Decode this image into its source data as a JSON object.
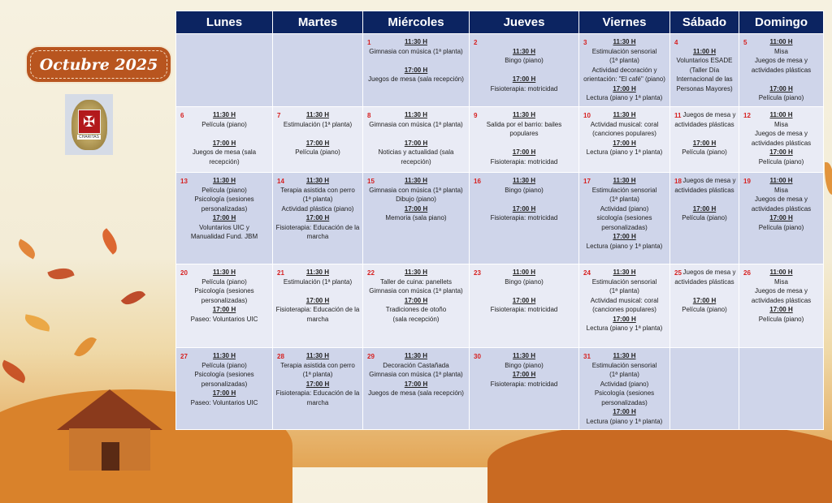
{
  "title": "Octubre 2025",
  "logo": {
    "text": "CHARITAS",
    "icon": "cross-icon"
  },
  "colors": {
    "header": "#0c2461",
    "row_dark": "#cfd5ea",
    "row_light": "#e9ebf5",
    "day_number": "#d62020",
    "badge": "#b8551f"
  },
  "weekdays": [
    "Lunes",
    "Martes",
    "Miércoles",
    "Jueves",
    "Viernes",
    "Sábado",
    "Domingo"
  ],
  "weeks": [
    [
      {
        "day": "",
        "items": []
      },
      {
        "day": "",
        "items": []
      },
      {
        "day": "1",
        "items": [
          {
            "time": "11:30 H"
          },
          {
            "text": "Gimnasia con música (1ª planta)"
          },
          {
            "gap": true
          },
          {
            "time": "17:00 H"
          },
          {
            "text": "Juegos de mesa (sala recepción)"
          }
        ]
      },
      {
        "day": "2",
        "items": [
          {
            "gap": true
          },
          {
            "time": "11:30 H"
          },
          {
            "text": "Bingo (piano)"
          },
          {
            "gap": true
          },
          {
            "time": "17:00 H"
          },
          {
            "text": "Fisioterapia: motricidad"
          }
        ]
      },
      {
        "day": "3",
        "items": [
          {
            "time": "11:30 H"
          },
          {
            "text": "Estimulación sensorial"
          },
          {
            "text": "(1ª planta)"
          },
          {
            "text": "Actividad decoración y"
          },
          {
            "text": "orientación: \"El café\" (piano)"
          },
          {
            "time": "17:00 H"
          },
          {
            "text": "Lectura (piano y 1ª planta)"
          }
        ]
      },
      {
        "day": "4",
        "items": [
          {
            "gap": true
          },
          {
            "time": "11:00 H"
          },
          {
            "text": "Voluntarios ESADE"
          },
          {
            "text": "(Taller Día"
          },
          {
            "text": "Internacional de las"
          },
          {
            "text": "Personas Mayores)"
          }
        ]
      },
      {
        "day": "5",
        "items": [
          {
            "time": "11:00 H"
          },
          {
            "text": "Misa"
          },
          {
            "text": "Juegos de mesa y"
          },
          {
            "text": "actividades plásticas"
          },
          {
            "gap": true
          },
          {
            "time": "17:00 H"
          },
          {
            "text": "Película (piano)"
          }
        ]
      }
    ],
    [
      {
        "day": "6",
        "items": [
          {
            "time": "11:30 H"
          },
          {
            "text": "Película (piano)"
          },
          {
            "gap": true
          },
          {
            "time": "17:00 H"
          },
          {
            "text": "Juegos de mesa (sala recepción)"
          }
        ]
      },
      {
        "day": "7",
        "items": [
          {
            "time": "11:30 H"
          },
          {
            "text": "Estimulación (1ª planta)"
          },
          {
            "gap": true
          },
          {
            "time": "17:00 H"
          },
          {
            "text": "Película (piano)"
          }
        ]
      },
      {
        "day": "8",
        "items": [
          {
            "time": "11:30 H"
          },
          {
            "text": "Gimnasia con música (1ª planta)"
          },
          {
            "gap": true
          },
          {
            "time": "17:00 H"
          },
          {
            "text": "Noticias y actualidad (sala"
          },
          {
            "text": "recepción)"
          }
        ]
      },
      {
        "day": "9",
        "items": [
          {
            "time": "11:30 H"
          },
          {
            "text": "Salida por el barrio: bailes populares"
          },
          {
            "gap": true
          },
          {
            "time": "17:00 H"
          },
          {
            "text": "Fisioterapia: motricidad"
          }
        ]
      },
      {
        "day": "10",
        "items": [
          {
            "time": "11:30 H"
          },
          {
            "text": "Actividad musical: coral"
          },
          {
            "text": "(canciones populares)"
          },
          {
            "time": "17:00 H"
          },
          {
            "text": "Lectura (piano y 1ª planta)"
          }
        ]
      },
      {
        "day": "11",
        "items": [
          {
            "text": "Juegos de mesa y"
          },
          {
            "text": "actividades plásticas"
          },
          {
            "gap": true
          },
          {
            "time": "17:00 H"
          },
          {
            "text": "Película (piano)"
          }
        ]
      },
      {
        "day": "12",
        "items": [
          {
            "time": "11:00 H"
          },
          {
            "text": "Misa"
          },
          {
            "text": "Juegos de mesa y"
          },
          {
            "text": "actividades plásticas"
          },
          {
            "time": "17:00 H"
          },
          {
            "text": "Película (piano)"
          }
        ]
      }
    ],
    [
      {
        "day": "13",
        "items": [
          {
            "time": "11:30  H"
          },
          {
            "text": "Película (piano)"
          },
          {
            "text": "Psicología (sesiones"
          },
          {
            "text": "personalizadas)"
          },
          {
            "time": "17:00  H"
          },
          {
            "text": "Voluntarios UIC    y"
          },
          {
            "text": "Manualidad Fund. JBM"
          }
        ]
      },
      {
        "day": "14",
        "items": [
          {
            "time": "11:30 H"
          },
          {
            "text": "Terapia asistida con perro"
          },
          {
            "text": "(1ª planta)"
          },
          {
            "text": "Actividad plástica (piano)"
          },
          {
            "time": "17:00 H"
          },
          {
            "text": "Fisioterapia: Educación de la"
          },
          {
            "text": "marcha"
          }
        ]
      },
      {
        "day": "15",
        "items": [
          {
            "time": "11:30 H"
          },
          {
            "text": "Gimnasia con música (1ª planta)"
          },
          {
            "text": "Dibujo (piano)"
          },
          {
            "time": "17:00 H"
          },
          {
            "text": "Memoria (sala piano)"
          }
        ]
      },
      {
        "day": "16",
        "items": [
          {
            "time": "11:30 H"
          },
          {
            "text": "Bingo (piano)"
          },
          {
            "gap": true
          },
          {
            "time": "17:00 H"
          },
          {
            "text": "Fisioterapia: motricidad"
          }
        ]
      },
      {
        "day": "17",
        "items": [
          {
            "time": "11:30 H"
          },
          {
            "text": "Estimulación sensorial"
          },
          {
            "text": "(1ª planta)"
          },
          {
            "text": "Actividad (piano)"
          },
          {
            "text": "sicología (sesiones"
          },
          {
            "text": "personalizadas)"
          },
          {
            "time": "17:00 H"
          },
          {
            "text": "Lectura (piano y 1ª planta)"
          }
        ]
      },
      {
        "day": "18",
        "items": [
          {
            "text": "Juegos de mesa y"
          },
          {
            "text": "actividades plásticas"
          },
          {
            "gap": true
          },
          {
            "time": "17:00 H"
          },
          {
            "text": "Película (piano)"
          }
        ]
      },
      {
        "day": "19",
        "items": [
          {
            "time": "11:00 H"
          },
          {
            "text": "Misa"
          },
          {
            "text": "Juegos de mesa y"
          },
          {
            "text": "actividades plásticas"
          },
          {
            "time": "17:00 H"
          },
          {
            "text": "Película (piano)"
          }
        ]
      }
    ],
    [
      {
        "day": "20",
        "items": [
          {
            "time": "11:30 H"
          },
          {
            "text": "Película (piano)"
          },
          {
            "text": "Psicología (sesiones"
          },
          {
            "text": "personalizadas)"
          },
          {
            "time": "17:00 H"
          },
          {
            "text": "Paseo: Voluntarios UIC"
          }
        ]
      },
      {
        "day": "21",
        "items": [
          {
            "time": "11:30 H"
          },
          {
            "text": "Estimulación (1ª planta)"
          },
          {
            "gap": true
          },
          {
            "time": "17:00 H"
          },
          {
            "text": "Fisioterapia: Educación de la"
          },
          {
            "text": "marcha"
          }
        ]
      },
      {
        "day": "22",
        "items": [
          {
            "time": "11:30 H"
          },
          {
            "text": "Taller de cuina: panellets"
          },
          {
            "text": "Gimnasia con música (1ª planta)"
          },
          {
            "time": "17:00 H"
          },
          {
            "text": "Tradiciones de otoño"
          },
          {
            "text": "(sala recepción)"
          }
        ]
      },
      {
        "day": "23",
        "items": [
          {
            "time": "11:00 H"
          },
          {
            "text": "Bingo (piano)"
          },
          {
            "gap": true
          },
          {
            "time": "17:00 H"
          },
          {
            "text": "Fisioterapia: motricidad"
          }
        ]
      },
      {
        "day": "24",
        "items": [
          {
            "time": "11:30 H"
          },
          {
            "text": "Estimulación sensorial"
          },
          {
            "text": "(1ª planta)"
          },
          {
            "text": "Actividad musical: coral"
          },
          {
            "text": "(canciones populares)"
          },
          {
            "time": "17:00 H"
          },
          {
            "text": "Lectura (piano y 1ª planta)"
          }
        ]
      },
      {
        "day": "25",
        "items": [
          {
            "text": "Juegos de mesa y"
          },
          {
            "text": "actividades plásticas"
          },
          {
            "gap": true
          },
          {
            "time": "17:00 H"
          },
          {
            "text": "Película (piano)"
          }
        ]
      },
      {
        "day": "26",
        "items": [
          {
            "time": "11:00 H"
          },
          {
            "text": "Misa"
          },
          {
            "text": "Juegos de mesa y"
          },
          {
            "text": "actividades plásticas"
          },
          {
            "time": "17:00 H"
          },
          {
            "text": "Película (piano)"
          }
        ]
      }
    ],
    [
      {
        "day": "27",
        "items": [
          {
            "time": "11:30 H"
          },
          {
            "text": "Película (piano)"
          },
          {
            "text": "Psicología (sesiones"
          },
          {
            "text": "personalizadas)"
          },
          {
            "time": "17:00 H"
          },
          {
            "text": "Paseo: Voluntarios UIC"
          }
        ]
      },
      {
        "day": "28",
        "items": [
          {
            "time": "11:30 H"
          },
          {
            "text": "Terapia asistida con perro"
          },
          {
            "text": "(1ª planta)"
          },
          {
            "time": "17:00 H"
          },
          {
            "text": "Fisioterapia: Educación de la"
          },
          {
            "text": "marcha"
          }
        ]
      },
      {
        "day": "29",
        "items": [
          {
            "time": "11:30 H"
          },
          {
            "text": "Decoración Castañada"
          },
          {
            "text": "Gimnasia con música (1ª planta)"
          },
          {
            "time": "17:00 H"
          },
          {
            "text": "Juegos de mesa (sala recepción)"
          }
        ]
      },
      {
        "day": "30",
        "items": [
          {
            "time": "11:30 H"
          },
          {
            "text": "Bingo (piano)"
          },
          {
            "time": "17:00 H"
          },
          {
            "text": "Fisioterapia: motricidad"
          }
        ]
      },
      {
        "day": "31",
        "items": [
          {
            "time": "11:30 H"
          },
          {
            "text": "Estimulación sensorial"
          },
          {
            "text": "(1ª planta)"
          },
          {
            "text": "Actividad (piano)"
          },
          {
            "text": "Psicología (sesiones"
          },
          {
            "text": "personalizadas)"
          },
          {
            "time": "17:00 H"
          },
          {
            "text": "Lectura (piano y 1ª planta)"
          }
        ]
      },
      {
        "day": "",
        "items": []
      },
      {
        "day": "",
        "items": []
      }
    ]
  ]
}
